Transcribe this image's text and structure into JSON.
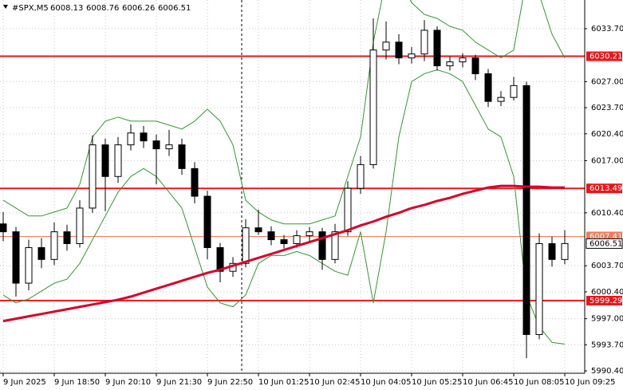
{
  "chart_data": {
    "type": "candlestick",
    "symbol": "#SPX,M5",
    "quote": [
      6008.13,
      6008.76,
      6006.26,
      6006.51
    ],
    "ylim": [
      5990.1,
      6037.33
    ],
    "yticks": [
      {
        "value": 6033.7,
        "label": "6033.70"
      },
      {
        "value": 6027.0,
        "label": "6027.00"
      },
      {
        "value": 6023.7,
        "label": "6023.70"
      },
      {
        "value": 6020.4,
        "label": "6020.40"
      },
      {
        "value": 6017.0,
        "label": "6017.00"
      },
      {
        "value": 6010.4,
        "label": "6010.40"
      },
      {
        "value": 6003.7,
        "label": "6003.70"
      },
      {
        "value": 6000.4,
        "label": "6000.40"
      },
      {
        "value": 5997.0,
        "label": "5997.00"
      },
      {
        "value": 5993.7,
        "label": "5993.70"
      },
      {
        "value": 5990.4,
        "label": "5990.40"
      }
    ],
    "grid": true,
    "categories": [
      "9 Jun 2025",
      null,
      null,
      null,
      "9 Jun 18:50",
      null,
      null,
      null,
      "9 Jun 20:10",
      null,
      null,
      null,
      "9 Jun 21:30",
      null,
      null,
      null,
      "9 Jun 22:50",
      null,
      null,
      null,
      "10 Jun 01:25",
      null,
      null,
      null,
      "10 Jun 02:45",
      null,
      null,
      null,
      "10 Jun 04:05",
      null,
      null,
      null,
      "10 Jun 05:25",
      null,
      null,
      null,
      "10 Jun 06:45",
      null,
      null,
      null,
      "10 Jun 08:05",
      null,
      null,
      null,
      "10 Jun 09:25"
    ],
    "ohlc": [
      [
        6009,
        6010.5,
        6006.8,
        6008
      ],
      [
        6008,
        6008.6,
        5999.8,
        6001.5
      ],
      [
        6001.5,
        6007,
        6000.6,
        6006
      ],
      [
        6006,
        6007.2,
        6003.4,
        6004.5
      ],
      [
        6004.5,
        6009.2,
        6003.8,
        6008
      ],
      [
        6008,
        6008.9,
        6005.6,
        6006.5
      ],
      [
        6006.5,
        6012,
        6006,
        6011
      ],
      [
        6011,
        6020.2,
        6010.4,
        6019
      ],
      [
        6019,
        6019.8,
        6010.6,
        6015
      ],
      [
        6015,
        6020,
        6014.2,
        6019
      ],
      [
        6019,
        6021.6,
        6018.3,
        6020.5
      ],
      [
        6020.5,
        6021.4,
        6018.6,
        6019.5
      ],
      [
        6019.5,
        6020.3,
        6014,
        6018.5
      ],
      [
        6018.5,
        6020.9,
        6017.6,
        6019
      ],
      [
        6019,
        6019.8,
        6015.2,
        6016
      ],
      [
        6016,
        6016.8,
        6011.6,
        6012.5
      ],
      [
        6012.5,
        6013.2,
        6004.5,
        6006
      ],
      [
        6006,
        6006.6,
        6001.6,
        6003
      ],
      [
        6003,
        6004.8,
        6002.3,
        6004
      ],
      [
        6004,
        6009.6,
        6003.5,
        6008.5
      ],
      [
        6008.5,
        6010.8,
        6007.6,
        6008
      ],
      [
        6008,
        6008.7,
        6006.3,
        6007
      ],
      [
        6007,
        6007.6,
        6005.9,
        6006.5
      ],
      [
        6006.5,
        6008.2,
        6006,
        6007.5
      ],
      [
        6007.5,
        6008.6,
        6006.8,
        6008
      ],
      [
        6008,
        6008.5,
        6003.2,
        6004.5
      ],
      [
        6004.5,
        6009,
        6004,
        6008
      ],
      [
        6008,
        6014.4,
        6007.5,
        6013.5
      ],
      [
        6013.5,
        6017.6,
        6012.8,
        6016.5
      ],
      [
        6016.5,
        6035,
        6016,
        6031
      ],
      [
        6031,
        6034.6,
        6029.8,
        6032
      ],
      [
        6032,
        6033,
        6029.2,
        6030
      ],
      [
        6030,
        6031.4,
        6029.3,
        6030.5
      ],
      [
        6030.5,
        6034.8,
        6029.6,
        6033.5
      ],
      [
        6033.5,
        6034,
        6028.4,
        6029
      ],
      [
        6029,
        6030.2,
        6028.4,
        6029.5
      ],
      [
        6029.5,
        6030.6,
        6028.8,
        6030
      ],
      [
        6030,
        6030.4,
        6027.2,
        6028
      ],
      [
        6028,
        6028.6,
        6023.8,
        6024.5
      ],
      [
        6024.5,
        6025.8,
        6023.9,
        6025
      ],
      [
        6025,
        6027.6,
        6024.6,
        6026.5
      ],
      [
        6026.5,
        6027,
        5992,
        5995
      ],
      [
        5995,
        6007.8,
        5994.4,
        6006.5
      ],
      [
        6006.5,
        6007.4,
        6003.6,
        6004.5
      ],
      [
        6004.5,
        6008.2,
        6003.9,
        6006.51
      ]
    ],
    "bull_color": "#ffffff",
    "bear_color": "#000000",
    "ma": {
      "color": "#d9002a",
      "values": [
        5996.7,
        5997.0,
        5997.3,
        5997.6,
        5997.9,
        5998.2,
        5998.5,
        5998.8,
        5999.1,
        5999.4,
        5999.8,
        6000.3,
        6000.8,
        6001.3,
        6001.8,
        6002.3,
        6002.8,
        6003.2,
        6003.7,
        6004.2,
        6004.7,
        6005.2,
        6005.7,
        6006.2,
        6006.7,
        6007.2,
        6007.7,
        6008.2,
        6008.8,
        6009.3,
        6009.9,
        6010.4,
        6011.0,
        6011.4,
        6011.9,
        6012.3,
        6012.8,
        6013.2,
        6013.6,
        6013.8,
        6013.8,
        6013.7,
        6013.7,
        6013.6,
        6013.6
      ]
    },
    "bands": [
      {
        "color": "#2e9a2e",
        "values": [
          6012,
          6011,
          6010,
          6010,
          6010.5,
          6011,
          6014,
          6020,
          6022,
          6022.5,
          6022,
          6022,
          6022,
          6021.5,
          6021,
          6022,
          6023.5,
          6022,
          6019,
          6012,
          6010.5,
          6009.5,
          6009,
          6009,
          6009,
          6009.5,
          6010,
          6015,
          6020,
          6032,
          6040,
          6040,
          6037,
          6035.5,
          6035,
          6034,
          6033.5,
          6032,
          6031,
          6030,
          6031,
          6040,
          6038,
          6033,
          6030
        ]
      },
      {
        "color": "#2e9a2e",
        "values": [
          6000,
          5999,
          5999.5,
          6000.5,
          6001.5,
          6002,
          6004,
          6007,
          6010,
          6013,
          6015,
          6016,
          6015,
          6013,
          6011,
          6006,
          6001,
          5999,
          5998.5,
          6000,
          6004,
          6005,
          6005,
          6005.5,
          6005,
          6004,
          6003,
          6002.5,
          6008,
          5999,
          6008,
          6020,
          6027,
          6028,
          6028.5,
          6028,
          6027,
          6024,
          6021,
          6020,
          6015,
          6000,
          5996,
          5994,
          5993.8
        ]
      }
    ],
    "levels": [
      {
        "value": 6030.21,
        "color": "#e8161b",
        "width": 2
      },
      {
        "value": 6013.49,
        "color": "#e8161b",
        "width": 2
      },
      {
        "value": 5999.29,
        "color": "#e8161b",
        "width": 2
      },
      {
        "value": 6007.41,
        "color": "#f07a5a",
        "width": 1
      }
    ]
  }
}
